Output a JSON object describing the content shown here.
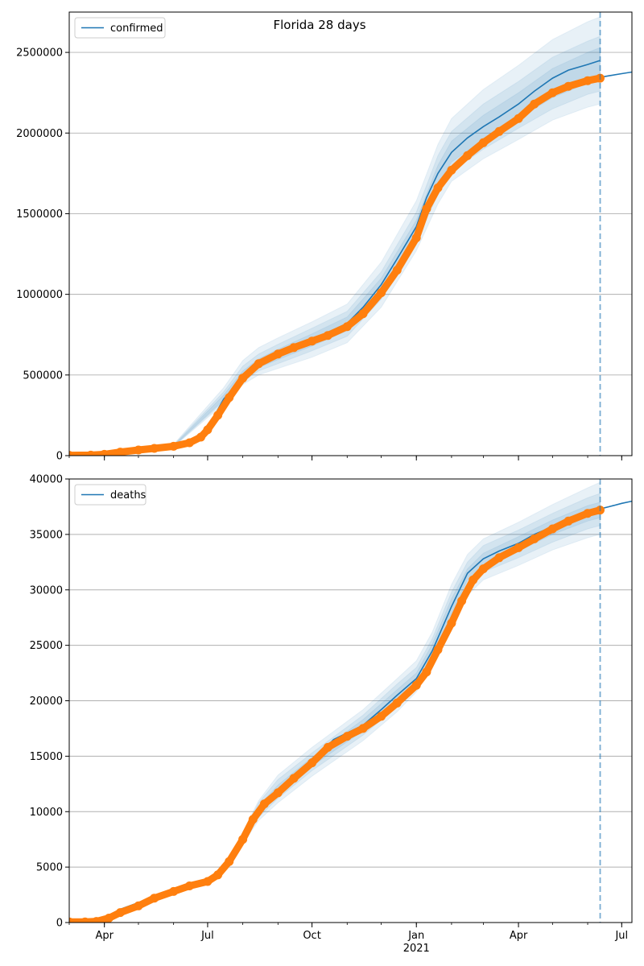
{
  "figure": {
    "title": "Florida 28 days",
    "colors": {
      "model": "#1f77b4",
      "observed": "#ff7f0e",
      "band": "#1f77b4",
      "grid": "#b0b0b0",
      "forecast_line": "#1f77b4"
    }
  },
  "chart_data": [
    {
      "type": "line",
      "title": "",
      "xlabel": "",
      "ylabel": "",
      "x_axis": {
        "type": "date",
        "range": [
          "2020-03-01",
          "2021-07-10"
        ],
        "ticks": [
          {
            "date": "2020-04-01",
            "label": "Apr"
          },
          {
            "date": "2020-07-01",
            "label": "Jul"
          },
          {
            "date": "2020-10-01",
            "label": "Oct"
          },
          {
            "date": "2021-01-01",
            "label": "Jan",
            "sublabel": ""
          },
          {
            "date": "2021-04-01",
            "label": "Apr"
          },
          {
            "date": "2021-07-01",
            "label": "Jul"
          }
        ],
        "show_labels": false
      },
      "ylim": [
        0,
        2750000
      ],
      "yticks": [
        {
          "value": 0,
          "label": "0"
        },
        {
          "value": 500000,
          "label": "500000"
        },
        {
          "value": 1000000,
          "label": "1000000"
        },
        {
          "value": 1500000,
          "label": "1500000"
        },
        {
          "value": 2000000,
          "label": "2000000"
        },
        {
          "value": 2500000,
          "label": "2500000"
        }
      ],
      "grid": "horizontal",
      "legend": {
        "placement": "top-left",
        "entries": [
          {
            "label": "confirmed"
          }
        ]
      },
      "forecast_start": "2021-06-12",
      "model_line": {
        "x": [
          "2020-03-01",
          "2020-04-01",
          "2020-05-01",
          "2020-06-01",
          "2020-06-15",
          "2020-07-01",
          "2020-07-15",
          "2020-08-01",
          "2020-08-15",
          "2020-09-01",
          "2020-10-01",
          "2020-11-01",
          "2020-11-15",
          "2020-12-01",
          "2020-12-15",
          "2021-01-01",
          "2021-01-10",
          "2021-01-20",
          "2021-02-01",
          "2021-02-15",
          "2021-03-01",
          "2021-03-15",
          "2021-04-01",
          "2021-04-15",
          "2021-05-01",
          "2021-05-15",
          "2021-06-01",
          "2021-06-12"
        ],
        "y": [
          0,
          8000,
          35000,
          60000,
          90000,
          170000,
          350000,
          490000,
          570000,
          630000,
          720000,
          820000,
          920000,
          1060000,
          1220000,
          1420000,
          1600000,
          1750000,
          1880000,
          1970000,
          2040000,
          2100000,
          2180000,
          2260000,
          2340000,
          2390000,
          2425000,
          2450000
        ]
      },
      "forecast_line": {
        "x": [
          "2021-06-12",
          "2021-06-20",
          "2021-07-01",
          "2021-07-10"
        ],
        "y": [
          2345000,
          2355000,
          2368000,
          2378000
        ]
      },
      "bands": [
        {
          "x": [
            "2020-06-01",
            "2020-07-15",
            "2020-08-01",
            "2020-08-15",
            "2020-09-01",
            "2020-10-01",
            "2020-11-01",
            "2020-12-01",
            "2021-01-01",
            "2021-01-20",
            "2021-02-01",
            "2021-03-01",
            "2021-04-01",
            "2021-05-01",
            "2021-06-01",
            "2021-06-12"
          ],
          "lower": [
            55000,
            320000,
            440000,
            500000,
            540000,
            610000,
            700000,
            920000,
            1270000,
            1560000,
            1700000,
            1840000,
            1960000,
            2080000,
            2160000,
            2180000
          ],
          "upper": [
            70000,
            420000,
            590000,
            670000,
            730000,
            830000,
            940000,
            1200000,
            1580000,
            1930000,
            2090000,
            2270000,
            2420000,
            2580000,
            2690000,
            2720000
          ]
        },
        {
          "x": [
            "2020-06-01",
            "2020-07-15",
            "2020-08-01",
            "2020-08-15",
            "2020-09-01",
            "2020-10-01",
            "2020-11-01",
            "2020-12-01",
            "2021-01-01",
            "2021-01-20",
            "2021-02-01",
            "2021-03-01",
            "2021-04-01",
            "2021-05-01",
            "2021-06-01",
            "2021-06-12"
          ],
          "lower": [
            57000,
            335000,
            460000,
            525000,
            570000,
            650000,
            740000,
            970000,
            1330000,
            1620000,
            1760000,
            1900000,
            2030000,
            2150000,
            2240000,
            2260000
          ],
          "upper": [
            66000,
            395000,
            555000,
            630000,
            690000,
            790000,
            895000,
            1140000,
            1510000,
            1860000,
            2010000,
            2180000,
            2320000,
            2470000,
            2570000,
            2600000
          ]
        },
        {
          "x": [
            "2020-06-01",
            "2020-07-15",
            "2020-08-01",
            "2020-08-15",
            "2020-09-01",
            "2020-10-01",
            "2020-11-01",
            "2020-12-01",
            "2021-01-01",
            "2021-01-20",
            "2021-02-01",
            "2021-03-01",
            "2021-04-01",
            "2021-05-01",
            "2021-06-01",
            "2021-06-12"
          ],
          "lower": [
            59000,
            345000,
            475000,
            545000,
            595000,
            680000,
            775000,
            1010000,
            1380000,
            1680000,
            1820000,
            1960000,
            2090000,
            2220000,
            2310000,
            2330000
          ],
          "upper": [
            63000,
            375000,
            525000,
            600000,
            660000,
            755000,
            860000,
            1100000,
            1460000,
            1800000,
            1950000,
            2110000,
            2250000,
            2400000,
            2500000,
            2530000
          ]
        }
      ],
      "observed": {
        "x": [
          "2020-03-01",
          "2020-03-20",
          "2020-04-01",
          "2020-04-15",
          "2020-05-01",
          "2020-05-15",
          "2020-06-01",
          "2020-06-15",
          "2020-06-25",
          "2020-07-01",
          "2020-07-10",
          "2020-07-20",
          "2020-08-01",
          "2020-08-15",
          "2020-09-01",
          "2020-09-15",
          "2020-10-01",
          "2020-10-15",
          "2020-11-01",
          "2020-11-15",
          "2020-12-01",
          "2020-12-15",
          "2021-01-01",
          "2021-01-10",
          "2021-01-20",
          "2021-02-01",
          "2021-02-15",
          "2021-03-01",
          "2021-03-15",
          "2021-04-01",
          "2021-04-15",
          "2021-05-01",
          "2021-05-15",
          "2021-06-01",
          "2021-06-12"
        ],
        "y": [
          2000,
          3000,
          8000,
          22000,
          35000,
          45000,
          58000,
          80000,
          115000,
          160000,
          250000,
          360000,
          480000,
          570000,
          630000,
          670000,
          710000,
          745000,
          800000,
          880000,
          1010000,
          1150000,
          1350000,
          1530000,
          1660000,
          1770000,
          1860000,
          1940000,
          2010000,
          2090000,
          2180000,
          2250000,
          2290000,
          2325000,
          2340000
        ]
      }
    },
    {
      "type": "line",
      "title": "",
      "xlabel": "",
      "ylabel": "",
      "x_axis": {
        "type": "date",
        "range": [
          "2020-03-01",
          "2021-07-10"
        ],
        "ticks": [
          {
            "date": "2020-04-01",
            "label": "Apr"
          },
          {
            "date": "2020-07-01",
            "label": "Jul"
          },
          {
            "date": "2020-10-01",
            "label": "Oct"
          },
          {
            "date": "2021-01-01",
            "label": "Jan",
            "sublabel": "2021"
          },
          {
            "date": "2021-04-01",
            "label": "Apr"
          },
          {
            "date": "2021-07-01",
            "label": "Jul"
          }
        ],
        "show_labels": true
      },
      "ylim": [
        0,
        40000
      ],
      "yticks": [
        {
          "value": 0,
          "label": "0"
        },
        {
          "value": 5000,
          "label": "5000"
        },
        {
          "value": 10000,
          "label": "10000"
        },
        {
          "value": 15000,
          "label": "15000"
        },
        {
          "value": 20000,
          "label": "20000"
        },
        {
          "value": 25000,
          "label": "25000"
        },
        {
          "value": 30000,
          "label": "30000"
        },
        {
          "value": 35000,
          "label": "35000"
        },
        {
          "value": 40000,
          "label": "40000"
        }
      ],
      "grid": "horizontal",
      "legend": {
        "placement": "top-left",
        "entries": [
          {
            "label": "deaths"
          }
        ]
      },
      "forecast_start": "2021-06-12",
      "model_line": {
        "x": [
          "2020-03-01",
          "2020-03-25",
          "2020-04-15",
          "2020-05-01",
          "2020-06-01",
          "2020-07-01",
          "2020-07-20",
          "2020-08-01",
          "2020-08-15",
          "2020-09-01",
          "2020-10-01",
          "2020-10-20",
          "2020-11-15",
          "2020-12-01",
          "2020-12-15",
          "2021-01-01",
          "2021-01-15",
          "2021-02-01",
          "2021-02-15",
          "2021-03-01",
          "2021-03-15",
          "2021-04-01",
          "2021-04-15",
          "2021-05-01",
          "2021-05-15",
          "2021-06-01",
          "2021-06-12"
        ],
        "y": [
          0,
          50,
          1200,
          1800,
          2800,
          3700,
          5500,
          7500,
          10200,
          12000,
          14500,
          16500,
          17800,
          19200,
          20500,
          22000,
          24500,
          28500,
          31500,
          32800,
          33500,
          34200,
          35000,
          35700,
          36500,
          37000,
          37300
        ]
      },
      "forecast_line": {
        "x": [
          "2021-06-12",
          "2021-06-20",
          "2021-07-01",
          "2021-07-10"
        ],
        "y": [
          37300,
          37500,
          37800,
          38000
        ]
      },
      "bands": [
        {
          "x": [
            "2020-07-20",
            "2020-08-15",
            "2020-09-01",
            "2020-10-01",
            "2020-11-15",
            "2020-12-15",
            "2021-01-01",
            "2021-01-15",
            "2021-02-01",
            "2021-02-15",
            "2021-03-01",
            "2021-04-01",
            "2021-05-01",
            "2021-06-01",
            "2021-06-12"
          ],
          "lower": [
            5300,
            9200,
            10800,
            13200,
            16400,
            19000,
            20800,
            23000,
            26500,
            29500,
            30900,
            32200,
            33600,
            34700,
            35000
          ],
          "upper": [
            5700,
            11000,
            13300,
            15800,
            19200,
            22000,
            23600,
            26200,
            30500,
            33200,
            34600,
            36100,
            37700,
            39200,
            39700
          ]
        },
        {
          "x": [
            "2020-07-20",
            "2020-08-15",
            "2020-09-01",
            "2020-10-01",
            "2020-11-15",
            "2020-12-15",
            "2021-01-01",
            "2021-01-15",
            "2021-02-01",
            "2021-02-15",
            "2021-03-01",
            "2021-04-01",
            "2021-05-01",
            "2021-06-01",
            "2021-06-12"
          ],
          "lower": [
            5350,
            9500,
            11200,
            13700,
            16900,
            19500,
            21200,
            23600,
            27200,
            30300,
            31600,
            32900,
            34300,
            35500,
            35800
          ],
          "upper": [
            5650,
            10800,
            12900,
            15300,
            18700,
            21500,
            23000,
            25600,
            29800,
            32500,
            34000,
            35400,
            36900,
            38300,
            38700
          ]
        },
        {
          "x": [
            "2020-07-20",
            "2020-08-15",
            "2020-09-01",
            "2020-10-01",
            "2020-11-15",
            "2020-12-15",
            "2021-01-01",
            "2021-01-15",
            "2021-02-01",
            "2021-02-15",
            "2021-03-01",
            "2021-04-01",
            "2021-05-01",
            "2021-06-01",
            "2021-06-12"
          ],
          "lower": [
            5400,
            9800,
            11600,
            14100,
            17300,
            20000,
            21600,
            24000,
            27800,
            30900,
            32100,
            33500,
            35000,
            36200,
            36500
          ],
          "upper": [
            5600,
            10500,
            12400,
            14900,
            18300,
            21000,
            22500,
            25100,
            29200,
            31900,
            33300,
            34800,
            36300,
            37600,
            37900
          ]
        }
      ],
      "observed": {
        "x": [
          "2020-03-01",
          "2020-03-15",
          "2020-03-25",
          "2020-04-05",
          "2020-04-15",
          "2020-05-01",
          "2020-05-15",
          "2020-06-01",
          "2020-06-15",
          "2020-07-01",
          "2020-07-10",
          "2020-07-20",
          "2020-08-01",
          "2020-08-10",
          "2020-08-20",
          "2020-09-01",
          "2020-09-15",
          "2020-10-01",
          "2020-10-15",
          "2020-11-01",
          "2020-11-15",
          "2020-12-01",
          "2020-12-15",
          "2021-01-01",
          "2021-01-10",
          "2021-01-20",
          "2021-02-01",
          "2021-02-10",
          "2021-02-20",
          "2021-03-01",
          "2021-03-15",
          "2021-04-01",
          "2021-04-15",
          "2021-05-01",
          "2021-05-15",
          "2021-06-01",
          "2021-06-12"
        ],
        "y": [
          50,
          60,
          100,
          400,
          900,
          1500,
          2200,
          2800,
          3300,
          3700,
          4300,
          5500,
          7500,
          9300,
          10700,
          11700,
          13000,
          14400,
          15800,
          16800,
          17500,
          18600,
          19800,
          21400,
          22600,
          24600,
          27000,
          29000,
          30900,
          31900,
          32900,
          33800,
          34600,
          35500,
          36200,
          36900,
          37200
        ]
      }
    }
  ]
}
